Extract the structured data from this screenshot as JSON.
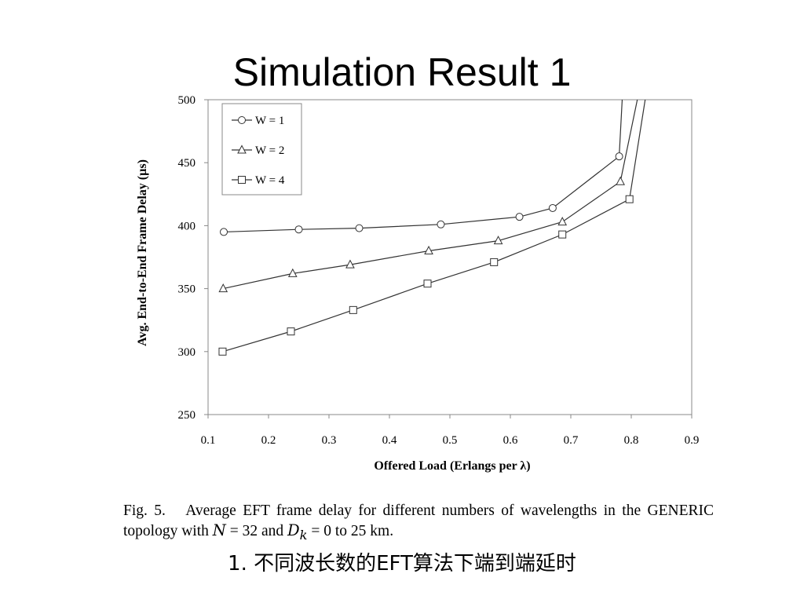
{
  "slide": {
    "title": "Simulation Result 1",
    "note_number": "1.",
    "note_text": "不同波长数的EFT算法下端到端延时"
  },
  "caption": {
    "fig_label": "Fig. 5.",
    "text_part1": "Average EFT frame delay for different numbers of wavelengths in the GENERIC topology with",
    "var_n": "N",
    "eq_n": "= 32 and",
    "var_d": "D",
    "var_d_sub": "k",
    "eq_d": "= 0 to 25 km."
  },
  "chart_data": {
    "type": "line",
    "xlabel": "Offered Load (Erlangs per λ)",
    "ylabel": "Avg. End-to-End Frame Delay (µs)",
    "xlim": [
      0.1,
      0.9
    ],
    "ylim": [
      250,
      500
    ],
    "xticks": [
      "0.1",
      "0.2",
      "0.3",
      "0.4",
      "0.5",
      "0.6",
      "0.7",
      "0.8",
      "0.9"
    ],
    "yticks": [
      "250",
      "300",
      "350",
      "400",
      "450",
      "500"
    ],
    "grid": false,
    "legend_position": "top-left",
    "series": [
      {
        "name": "W = 1",
        "marker": "circle",
        "x": [
          0.126,
          0.25,
          0.35,
          0.485,
          0.615,
          0.67,
          0.78,
          0.785
        ],
        "y": [
          395,
          397,
          398,
          401,
          407,
          414,
          455,
          500
        ]
      },
      {
        "name": "W = 2",
        "marker": "triangle",
        "x": [
          0.125,
          0.24,
          0.335,
          0.465,
          0.58,
          0.686,
          0.782,
          0.81
        ],
        "y": [
          350,
          362,
          369,
          380,
          388,
          403,
          435,
          500
        ]
      },
      {
        "name": "W = 4",
        "marker": "square",
        "x": [
          0.124,
          0.237,
          0.34,
          0.463,
          0.573,
          0.686,
          0.797,
          0.823
        ],
        "y": [
          300,
          316,
          333,
          354,
          371,
          393,
          421,
          500
        ]
      }
    ]
  }
}
